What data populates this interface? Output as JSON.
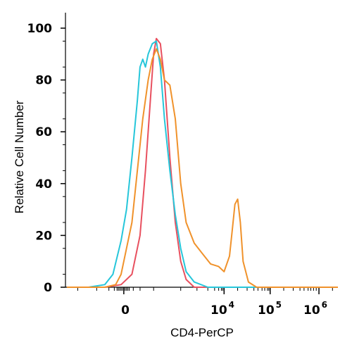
{
  "chart_data": {
    "type": "line",
    "title": "",
    "xlabel": "CD4-PerCP",
    "ylabel": "Relative Cell Number",
    "ylim": [
      0,
      100
    ],
    "y_ticks": [
      0,
      20,
      40,
      60,
      80,
      100
    ],
    "x_scale": "biexponential",
    "x_tick_labels": [
      {
        "base": "0",
        "exp": ""
      },
      {
        "base": "10",
        "exp": "4"
      },
      {
        "base": "10",
        "exp": "5"
      },
      {
        "base": "10",
        "exp": "6"
      }
    ],
    "legend": "none",
    "grid": false,
    "series": [
      {
        "color": "#e8505f",
        "points": [
          [
            0.0,
            0
          ],
          [
            0.14,
            0
          ],
          [
            0.2,
            1
          ],
          [
            0.24,
            5
          ],
          [
            0.27,
            20
          ],
          [
            0.29,
            45
          ],
          [
            0.31,
            75
          ],
          [
            0.32,
            90
          ],
          [
            0.33,
            96
          ],
          [
            0.345,
            94
          ],
          [
            0.36,
            80
          ],
          [
            0.38,
            50
          ],
          [
            0.4,
            25
          ],
          [
            0.42,
            10
          ],
          [
            0.44,
            3
          ],
          [
            0.47,
            0
          ],
          [
            1.0,
            0
          ]
        ]
      },
      {
        "color": "#26c6da",
        "points": [
          [
            0.0,
            0
          ],
          [
            0.08,
            0
          ],
          [
            0.14,
            1
          ],
          [
            0.17,
            5
          ],
          [
            0.2,
            18
          ],
          [
            0.22,
            30
          ],
          [
            0.24,
            50
          ],
          [
            0.26,
            72
          ],
          [
            0.27,
            85
          ],
          [
            0.28,
            88
          ],
          [
            0.29,
            85
          ],
          [
            0.3,
            90
          ],
          [
            0.315,
            94
          ],
          [
            0.33,
            95
          ],
          [
            0.345,
            85
          ],
          [
            0.36,
            65
          ],
          [
            0.38,
            45
          ],
          [
            0.4,
            28
          ],
          [
            0.42,
            15
          ],
          [
            0.44,
            6
          ],
          [
            0.47,
            2
          ],
          [
            0.52,
            0
          ],
          [
            1.0,
            0
          ]
        ]
      },
      {
        "color": "#f0922b",
        "points": [
          [
            0.0,
            0
          ],
          [
            0.14,
            0
          ],
          [
            0.18,
            1
          ],
          [
            0.2,
            5
          ],
          [
            0.22,
            15
          ],
          [
            0.24,
            25
          ],
          [
            0.26,
            45
          ],
          [
            0.28,
            65
          ],
          [
            0.3,
            80
          ],
          [
            0.315,
            88
          ],
          [
            0.33,
            92
          ],
          [
            0.345,
            88
          ],
          [
            0.36,
            80
          ],
          [
            0.38,
            78
          ],
          [
            0.4,
            65
          ],
          [
            0.42,
            40
          ],
          [
            0.44,
            25
          ],
          [
            0.47,
            17
          ],
          [
            0.5,
            13
          ],
          [
            0.53,
            9
          ],
          [
            0.56,
            8
          ],
          [
            0.58,
            6
          ],
          [
            0.6,
            12
          ],
          [
            0.61,
            22
          ],
          [
            0.62,
            32
          ],
          [
            0.63,
            34
          ],
          [
            0.64,
            25
          ],
          [
            0.65,
            10
          ],
          [
            0.67,
            2
          ],
          [
            0.7,
            0
          ],
          [
            1.0,
            0
          ]
        ]
      }
    ]
  }
}
